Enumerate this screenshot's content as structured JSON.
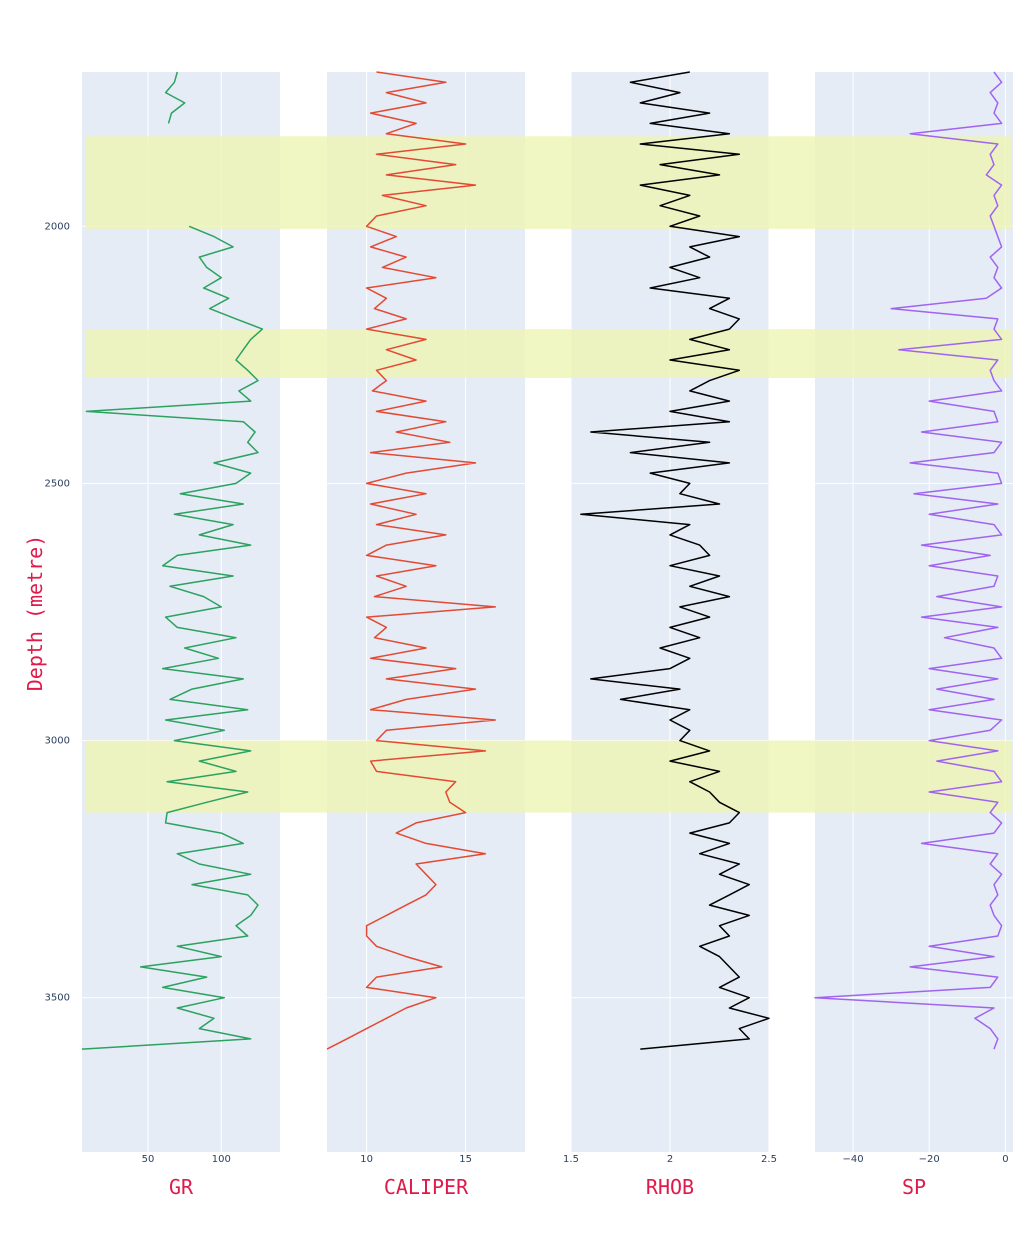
{
  "chart_data": {
    "type": "line",
    "orientation": "vertical well-log tracks",
    "ylabel": "Depth (metre)",
    "depth_range": [
      1700,
      3800
    ],
    "depth_ticks": [
      2000,
      2500,
      3000,
      3500
    ],
    "y_reversed": true,
    "grid": true,
    "highlight_zones": [
      {
        "top": 1825,
        "bottom": 2005,
        "color": "#eef5b3"
      },
      {
        "top": 2200,
        "bottom": 2295,
        "color": "#eef5b3"
      },
      {
        "top": 3000,
        "bottom": 3140,
        "color": "#eef5b3"
      }
    ],
    "tracks": [
      {
        "name": "GR",
        "xlabel": "GR",
        "color": "#2ca25f",
        "zone_color": "#2ca25f",
        "xlim": [
          5,
          140
        ],
        "xticks": [
          50,
          100
        ],
        "segments": [
          {
            "depth": [
              1700,
              1720,
              1740,
              1760,
              1780,
              1800
            ],
            "value": [
              70,
              68,
              62,
              75,
              66,
              64
            ]
          },
          {
            "depth": [
              2000,
              2020,
              2040,
              2060,
              2080,
              2100,
              2120,
              2140,
              2160,
              2180,
              2200,
              2220,
              2240,
              2260,
              2280,
              2300,
              2320,
              2340,
              2360,
              2380,
              2400,
              2420,
              2440,
              2460,
              2480,
              2500,
              2520,
              2540,
              2560,
              2580,
              2600,
              2620,
              2640,
              2660,
              2680,
              2700,
              2720,
              2740,
              2760,
              2780,
              2800,
              2820,
              2840,
              2860,
              2880,
              2900,
              2920,
              2940,
              2960,
              2980,
              3000,
              3020,
              3040,
              3060,
              3080,
              3100,
              3120,
              3140,
              3160,
              3180,
              3200,
              3220,
              3240,
              3260,
              3280,
              3300,
              3320,
              3340,
              3360,
              3380,
              3400,
              3420,
              3440,
              3460,
              3480,
              3500,
              3520,
              3540,
              3560,
              3580,
              3600
            ],
            "value": [
              78,
              95,
              108,
              85,
              90,
              100,
              88,
              105,
              92,
              110,
              128,
              120,
              115,
              110,
              118,
              125,
              112,
              120,
              8,
              115,
              123,
              118,
              125,
              95,
              120,
              110,
              72,
              115,
              68,
              108,
              85,
              120,
              70,
              60,
              108,
              65,
              88,
              100,
              62,
              70,
              110,
              75,
              98,
              60,
              115,
              80,
              65,
              118,
              62,
              102,
              68,
              120,
              85,
              110,
              63,
              118,
              90,
              63,
              62,
              100,
              115,
              70,
              85,
              120,
              80,
              118,
              125,
              120,
              110,
              118,
              70,
              100,
              45,
              90,
              60,
              102,
              70,
              95,
              85,
              120,
              5
            ]
          }
        ]
      },
      {
        "name": "CALIPER",
        "xlabel": "CALIPER",
        "color": "#e34a33",
        "zone_color": "#f4a582",
        "xlim": [
          8,
          18
        ],
        "xticks": [
          10,
          15
        ],
        "segments": [
          {
            "depth": [
              1700,
              1720,
              1740,
              1760,
              1780,
              1800,
              1820,
              1840,
              1860,
              1880,
              1900,
              1920,
              1940,
              1960,
              1980,
              2000,
              2020,
              2040,
              2060,
              2080,
              2100,
              2120,
              2140,
              2160,
              2180,
              2200,
              2220,
              2240,
              2260,
              2280,
              2300,
              2320,
              2340,
              2360,
              2380,
              2400,
              2420,
              2440,
              2460,
              2480,
              2500,
              2520,
              2540,
              2560,
              2580,
              2600,
              2620,
              2640,
              2660,
              2680,
              2700,
              2720,
              2740,
              2760,
              2780,
              2800,
              2820,
              2840,
              2860,
              2880,
              2900,
              2920,
              2940,
              2960,
              2980,
              3000,
              3020,
              3040,
              3060,
              3080,
              3100,
              3120,
              3140,
              3160,
              3180,
              3200,
              3220,
              3240,
              3260,
              3280,
              3300,
              3320,
              3340,
              3360,
              3380,
              3400,
              3420,
              3440,
              3460,
              3480,
              3500,
              3520,
              3540,
              3560,
              3580,
              3600
            ],
            "value": [
              10.5,
              14,
              11,
              13,
              10.2,
              12.5,
              11,
              15,
              10.5,
              14.5,
              11,
              15.5,
              10.8,
              13,
              10.5,
              10,
              11.5,
              10.2,
              12,
              10.8,
              13.5,
              10,
              11,
              10.4,
              12,
              10,
              13,
              11,
              12.5,
              10.5,
              11,
              10.3,
              13,
              10.5,
              14,
              11.5,
              14.2,
              10.2,
              15.5,
              12,
              10,
              13,
              10.2,
              12.5,
              10.5,
              14,
              11,
              10,
              13.5,
              10.5,
              12,
              10.4,
              16.5,
              10,
              11,
              10.4,
              13,
              10.2,
              14.5,
              11,
              15.5,
              12,
              10.2,
              16.5,
              11,
              10.5,
              16,
              10.2,
              10.5,
              14.5,
              14,
              14.2,
              15,
              12.5,
              11.5,
              13,
              16,
              12.5,
              13,
              13.5,
              13,
              12,
              11,
              10,
              10,
              10.5,
              12,
              13.8,
              10.5,
              10,
              13.5,
              12,
              11,
              10,
              9,
              8
            ]
          }
        ]
      },
      {
        "name": "RHOB",
        "xlabel": "RHOB",
        "color": "#000000",
        "zone_color": "#6b6e3a",
        "xlim": [
          1.5,
          2.5
        ],
        "xticks": [
          1.5,
          2,
          2.5
        ],
        "segments": [
          {
            "depth": [
              1700,
              1720,
              1740,
              1760,
              1780,
              1800,
              1820,
              1840,
              1860,
              1880,
              1900,
              1920,
              1940,
              1960,
              1980,
              2000,
              2020,
              2040,
              2060,
              2080,
              2100,
              2120,
              2140,
              2160,
              2180,
              2200,
              2220,
              2240,
              2260,
              2280,
              2300,
              2320,
              2340,
              2360,
              2380,
              2400,
              2420,
              2440,
              2460,
              2480,
              2500,
              2520,
              2540,
              2560,
              2580,
              2600,
              2620,
              2640,
              2660,
              2680,
              2700,
              2720,
              2740,
              2760,
              2780,
              2800,
              2820,
              2840,
              2860,
              2880,
              2900,
              2920,
              2940,
              2960,
              2980,
              3000,
              3020,
              3040,
              3060,
              3080,
              3100,
              3120,
              3140,
              3160,
              3180,
              3200,
              3220,
              3240,
              3260,
              3280,
              3300,
              3320,
              3340,
              3360,
              3380,
              3400,
              3420,
              3440,
              3460,
              3480,
              3500,
              3520,
              3540,
              3560,
              3580,
              3600
            ],
            "value": [
              2.1,
              1.8,
              2.05,
              1.85,
              2.2,
              1.9,
              2.3,
              1.85,
              2.35,
              1.95,
              2.25,
              1.85,
              2.1,
              1.95,
              2.15,
              2.0,
              2.35,
              2.1,
              2.2,
              2.0,
              2.15,
              1.9,
              2.3,
              2.2,
              2.35,
              2.3,
              2.1,
              2.3,
              2.0,
              2.35,
              2.2,
              2.1,
              2.3,
              2.0,
              2.3,
              1.6,
              2.2,
              1.8,
              2.3,
              1.9,
              2.1,
              2.05,
              2.25,
              1.55,
              2.1,
              2.0,
              2.15,
              2.2,
              2.0,
              2.25,
              2.1,
              2.3,
              2.05,
              2.2,
              2.0,
              2.15,
              1.95,
              2.1,
              2.0,
              1.6,
              2.05,
              1.75,
              2.1,
              2.0,
              2.1,
              2.05,
              2.2,
              2.0,
              2.25,
              2.1,
              2.2,
              2.25,
              2.35,
              2.3,
              2.1,
              2.3,
              2.15,
              2.35,
              2.25,
              2.4,
              2.3,
              2.2,
              2.4,
              2.25,
              2.3,
              2.15,
              2.25,
              2.3,
              2.35,
              2.25,
              2.4,
              2.3,
              2.5,
              2.35,
              2.4,
              1.85
            ]
          }
        ]
      },
      {
        "name": "SP",
        "xlabel": "SP",
        "color": "#a064f0",
        "zone_color": "#c8a0b4",
        "xlim": [
          -50,
          2
        ],
        "xticks": [
          -40,
          -20,
          0
        ],
        "segments": [
          {
            "depth": [
              1700,
              1720,
              1740,
              1760,
              1780,
              1800,
              1820,
              1840,
              1860,
              1880,
              1900,
              1920,
              1940,
              1960,
              1980,
              2000,
              2020,
              2040,
              2060,
              2080,
              2100,
              2120,
              2140,
              2160,
              2180,
              2200,
              2220,
              2240,
              2260,
              2280,
              2300,
              2320,
              2340,
              2360,
              2380,
              2400,
              2420,
              2440,
              2460,
              2480,
              2500,
              2520,
              2540,
              2560,
              2580,
              2600,
              2620,
              2640,
              2660,
              2680,
              2700,
              2720,
              2740,
              2760,
              2780,
              2800,
              2820,
              2840,
              2860,
              2880,
              2900,
              2920,
              2940,
              2960,
              2980,
              3000,
              3020,
              3040,
              3060,
              3080,
              3100,
              3120,
              3140,
              3160,
              3180,
              3200,
              3220,
              3240,
              3260,
              3280,
              3300,
              3320,
              3340,
              3360,
              3380,
              3400,
              3420,
              3440,
              3460,
              3480,
              3500,
              3520,
              3540,
              3560,
              3580,
              3600
            ],
            "value": [
              -3,
              -1,
              -4,
              -2,
              -3,
              -1,
              -25,
              -2,
              -4,
              -3,
              -5,
              -1,
              -3,
              -2,
              -4,
              -3,
              -2,
              -1,
              -4,
              -2,
              -3,
              -1,
              -5,
              -30,
              -2,
              -3,
              -1,
              -28,
              -2,
              -4,
              -3,
              -1,
              -20,
              -3,
              -2,
              -22,
              -1,
              -3,
              -25,
              -2,
              -1,
              -24,
              -2,
              -20,
              -3,
              -1,
              -22,
              -4,
              -20,
              -2,
              -3,
              -18,
              -1,
              -22,
              -2,
              -16,
              -3,
              -1,
              -20,
              -2,
              -18,
              -3,
              -20,
              -1,
              -4,
              -20,
              -2,
              -18,
              -3,
              -1,
              -20,
              -2,
              -4,
              -1,
              -3,
              -22,
              -2,
              -4,
              -1,
              -3,
              -2,
              -4,
              -3,
              -1,
              -2,
              -20,
              -3,
              -25,
              -2,
              -4,
              -50,
              -3,
              -8,
              -4,
              -2,
              -3
            ]
          }
        ]
      }
    ]
  }
}
